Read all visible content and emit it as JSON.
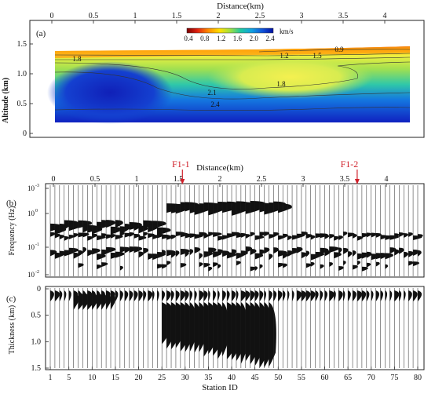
{
  "figure": {
    "panels": [
      {
        "label": "(a)",
        "chart_type": "heatmap",
        "top_axis_title": "Distance(km)",
        "top_ticks": [
          "0",
          "0.5",
          "1",
          "1.5",
          "2",
          "2.5",
          "3",
          "3.5",
          "4"
        ],
        "y_axis_title": "Altitude (km)",
        "y_ticks": [
          "1.5",
          "1.0",
          "0.5",
          "0"
        ],
        "colorbar": {
          "unit": "km/s",
          "ticks": [
            "0.4",
            "0.8",
            "1.2",
            "1.6",
            "2.0",
            "2.4"
          ],
          "colors": [
            "#7a0000",
            "#e02010",
            "#ff8c00",
            "#ffe000",
            "#9fe040",
            "#20c8a0",
            "#10a0e0",
            "#1050d8",
            "#0010a0"
          ]
        },
        "contour_labels": [
          "1.8",
          "1.2",
          "1.5",
          "0.9",
          "1.8",
          "2.1",
          "2.4"
        ]
      },
      {
        "label": "(b)",
        "chart_type": "wiggle",
        "top_axis_title": "Distance(km)",
        "top_ticks": [
          "0",
          "0.5",
          "1",
          "1.5",
          "2",
          "2.5",
          "3",
          "3.5",
          "4"
        ],
        "y_axis_title": "Frequency (Hz)",
        "y_ticks": [
          {
            "base": "10",
            "exp": "-3"
          },
          {
            "base": "10",
            "exp": "0"
          },
          {
            "base": "10",
            "exp": "-1"
          },
          {
            "base": "10",
            "exp": "-2"
          }
        ],
        "fault_markers": [
          "F1-1",
          "F1-2"
        ]
      },
      {
        "label": "(c)",
        "chart_type": "wiggle",
        "x_axis_title": "Station ID",
        "x_ticks": [
          "1",
          "5",
          "10",
          "15",
          "20",
          "25",
          "30",
          "35",
          "40",
          "45",
          "50",
          "55",
          "60",
          "65",
          "70",
          "75",
          "80"
        ],
        "y_axis_title": "Thickness (km)",
        "y_ticks": [
          "0",
          "0.5",
          "1.0",
          "1.5"
        ]
      }
    ]
  },
  "chart_data": [
    {
      "type": "heatmap",
      "x_range_km": [
        0,
        4.2
      ],
      "altitude_range_km": [
        0,
        1.7
      ],
      "z_range_km_per_s": [
        0.4,
        2.4
      ],
      "note_values": [
        {
          "distance_km": 0.2,
          "altitude_km": 1.3,
          "velocity_km_per_s": 1.8
        },
        {
          "distance_km": 2.8,
          "altitude_km": 1.3,
          "velocity_km_per_s": 1.2
        },
        {
          "distance_km": 3.2,
          "altitude_km": 1.3,
          "velocity_km_per_s": 1.5
        },
        {
          "distance_km": 3.5,
          "altitude_km": 1.35,
          "velocity_km_per_s": 0.9
        },
        {
          "distance_km": 2.7,
          "altitude_km": 0.9,
          "velocity_km_per_s": 1.8
        },
        {
          "distance_km": 1.6,
          "altitude_km": 0.7,
          "velocity_km_per_s": 2.1
        },
        {
          "distance_km": 1.7,
          "altitude_km": 0.5,
          "velocity_km_per_s": 2.4
        }
      ]
    },
    {
      "type": "wiggle",
      "stations": 80,
      "distance_range_km": [
        0,
        4.2
      ],
      "frequency_range_hz": [
        0.01,
        1000
      ],
      "faults": [
        {
          "name": "F1-1",
          "distance_km": 1.55
        },
        {
          "name": "F1-2",
          "distance_km": 3.65
        }
      ]
    },
    {
      "type": "wiggle",
      "stations": 80,
      "station_range": [
        1,
        80
      ],
      "thickness_range_km": [
        0,
        1.5
      ]
    }
  ]
}
